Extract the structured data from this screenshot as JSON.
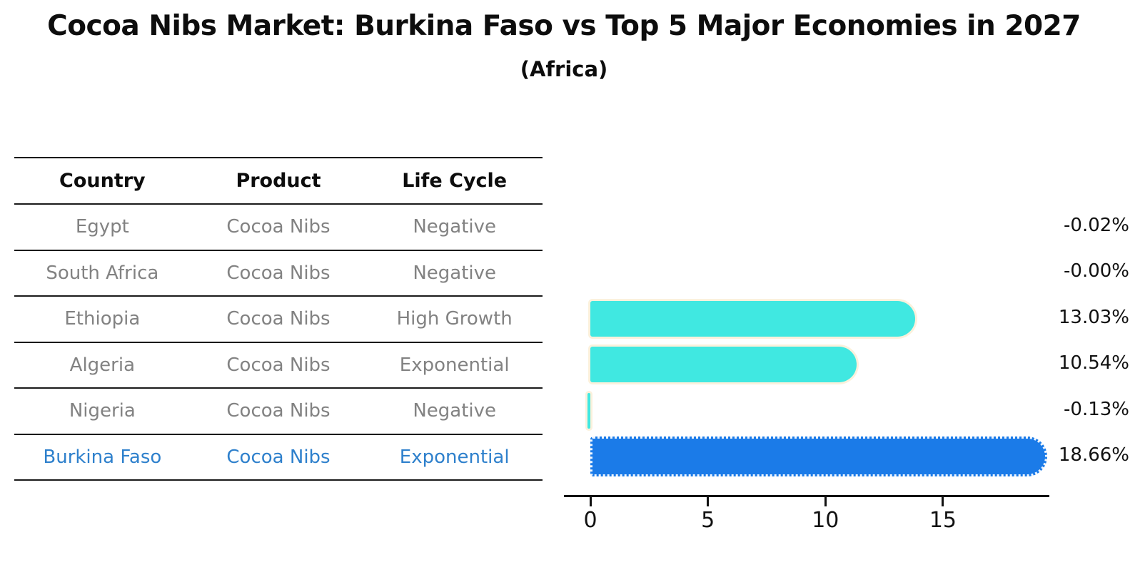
{
  "title": "Cocoa Nibs Market: Burkina Faso vs Top 5 Major Economies in 2027",
  "subtitle": "(Africa)",
  "table": {
    "columns": [
      "Country",
      "Product",
      "Life Cycle"
    ],
    "rows": [
      {
        "country": "Egypt",
        "product": "Cocoa Nibs",
        "life_cycle": "Negative",
        "highlight": false
      },
      {
        "country": "South Africa",
        "product": "Cocoa Nibs",
        "life_cycle": "Negative",
        "highlight": false
      },
      {
        "country": "Ethiopia",
        "product": "Cocoa Nibs",
        "life_cycle": "High Growth",
        "highlight": false
      },
      {
        "country": "Algeria",
        "product": "Cocoa Nibs",
        "life_cycle": "Exponential",
        "highlight": false
      },
      {
        "country": "Nigeria",
        "product": "Cocoa Nibs",
        "life_cycle": "Negative",
        "highlight": false
      },
      {
        "country": "Burkina Faso",
        "product": "Cocoa Nibs",
        "life_cycle": "Exponential",
        "highlight": true
      }
    ]
  },
  "chart_data": {
    "type": "bar",
    "orientation": "horizontal",
    "title": "Cocoa Nibs Market: Burkina Faso vs Top 5 Major Economies in 2027",
    "subtitle": "(Africa)",
    "categories": [
      "Egypt",
      "South Africa",
      "Ethiopia",
      "Algeria",
      "Nigeria",
      "Burkina Faso"
    ],
    "values": [
      -0.02,
      -0.0,
      13.03,
      10.54,
      -0.13,
      18.66
    ],
    "value_labels": [
      "-0.02%",
      "-0.00%",
      "13.03%",
      "10.54%",
      "-0.13%",
      "18.66%"
    ],
    "x_ticks": [
      0,
      5,
      10,
      15
    ],
    "xlim": [
      -1.1,
      19.5
    ],
    "grid": false,
    "legend": "none",
    "bar_color": "#40e8e1",
    "highlight_color": "#1b7be8",
    "highlight_index": 5
  },
  "colors": {
    "background": "#ffffff",
    "bar_cyan": "#40e8e1",
    "bar_blue": "#1b7be8",
    "bar_edge_cream": "#fbf1dc",
    "table_line": "#1a1a1a",
    "row_text_gray": "#828282",
    "highlight_text_blue": "#2e80cc",
    "axis_black": "#111111"
  }
}
